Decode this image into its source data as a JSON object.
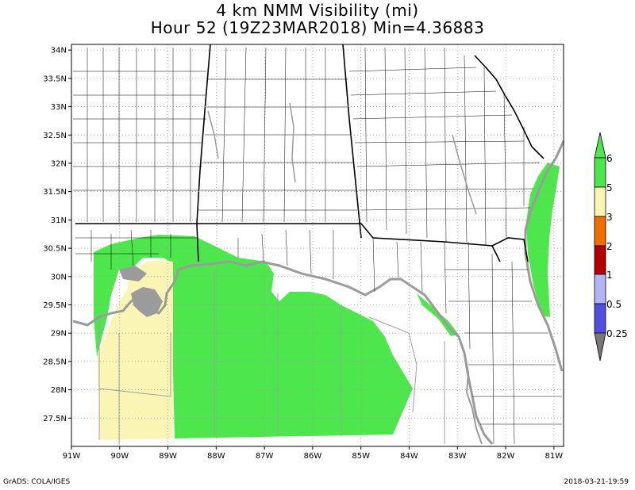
{
  "title": {
    "line1": "4 km NMM Visibility (mi)",
    "line2": "Hour 52 (19Z23MAR2018) Min=4.36883"
  },
  "axes": {
    "lat_labels": [
      "34N",
      "33.5N",
      "33N",
      "32.5N",
      "32N",
      "31.5N",
      "31N",
      "30.5N",
      "30N",
      "29.5N",
      "29N",
      "28.5N",
      "28N",
      "27.5N"
    ],
    "lat_values": [
      34,
      33.5,
      33,
      32.5,
      32,
      31.5,
      31,
      30.5,
      30,
      29.5,
      29,
      28.5,
      28,
      27.5
    ],
    "lon_labels": [
      "91W",
      "90W",
      "89W",
      "88W",
      "87W",
      "86W",
      "85W",
      "84W",
      "83W",
      "82W",
      "81W"
    ],
    "lon_values": [
      -91,
      -90,
      -89,
      -88,
      -87,
      -86,
      -85,
      -84,
      -83,
      -82,
      -81
    ],
    "lat_range": [
      27.0,
      34.1
    ],
    "lon_range": [
      -91.0,
      -80.8
    ]
  },
  "colorbar": {
    "labels": [
      "6",
      "5",
      "3",
      "2",
      "1",
      "0.5",
      "0.25"
    ],
    "colors": [
      "#4de64d",
      "#4de64d",
      "#faf5b4",
      "#f06d00",
      "#b40000",
      "#b4b4f5",
      "#5050dc",
      "#787878"
    ]
  },
  "footer": {
    "left": "GrADS: COLA/IGES",
    "right": "2018-03-21-19:59"
  },
  "map": {
    "land_color": "#ffffff",
    "water_color": "#9b9b9b",
    "vis_5_6_color": "#4de64d",
    "vis_3_5_color": "#faf5b4"
  }
}
